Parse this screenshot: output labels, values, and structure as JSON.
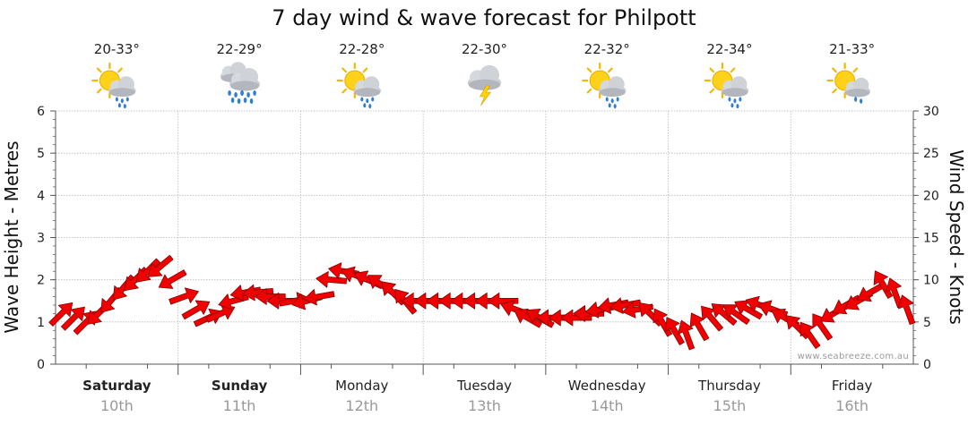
{
  "title": "7 day wind & wave forecast for Philpott",
  "watermark": "www.seabreeze.com.au",
  "colors": {
    "arrow_fill": "#f00000",
    "arrow_stroke": "#7a0000",
    "grid": "#b8b8b8",
    "axis": "#555555",
    "date_text": "#999999"
  },
  "days": [
    {
      "name": "Saturday",
      "date": "10th",
      "bold": true,
      "temp": "20-33°",
      "icon": "sun-cloud-rain-icon"
    },
    {
      "name": "Sunday",
      "date": "11th",
      "bold": true,
      "temp": "22-29°",
      "icon": "heavy-rain-cloud-icon"
    },
    {
      "name": "Monday",
      "date": "12th",
      "bold": false,
      "temp": "22-28°",
      "icon": "sun-cloud-rain-icon"
    },
    {
      "name": "Tuesday",
      "date": "13th",
      "bold": false,
      "temp": "22-30°",
      "icon": "thunderstorm-icon"
    },
    {
      "name": "Wednesday",
      "date": "14th",
      "bold": false,
      "temp": "22-32°",
      "icon": "sun-cloud-rain-icon"
    },
    {
      "name": "Thursday",
      "date": "15th",
      "bold": false,
      "temp": "22-34°",
      "icon": "sun-cloud-rain-icon"
    },
    {
      "name": "Friday",
      "date": "16th",
      "bold": false,
      "temp": "21-33°",
      "icon": "sun-cloud-shower-icon"
    }
  ],
  "chart_data": {
    "type": "line",
    "title": "7 day wind & wave forecast for Philpott",
    "ylabel_left": "Wave Height - Metres",
    "ylabel_right": "Wind Speed - Knots",
    "ylim_left": [
      0,
      6
    ],
    "ylim_right": [
      0,
      30
    ],
    "yticks_left": [
      "0",
      "1",
      "2",
      "3",
      "4",
      "5",
      "6"
    ],
    "yticks_right": [
      "0",
      "5",
      "10",
      "15",
      "20",
      "25",
      "30"
    ],
    "grid": true,
    "x_unit": "days from start of Saturday 10th",
    "series": [
      {
        "marker": "wind-direction-arrow",
        "axis": "right",
        "x": [
          0.05,
          0.15,
          0.25,
          0.35,
          0.45,
          0.55,
          0.65,
          0.75,
          0.85,
          0.95,
          1.05,
          1.15,
          1.25,
          1.35,
          1.45,
          1.55,
          1.65,
          1.75,
          1.85,
          1.95,
          2.05,
          2.15,
          2.25,
          2.35,
          2.45,
          2.55,
          2.65,
          2.75,
          2.85,
          2.95,
          3.05,
          3.15,
          3.25,
          3.35,
          3.45,
          3.55,
          3.65,
          3.75,
          3.85,
          3.95,
          4.05,
          4.15,
          4.25,
          4.35,
          4.45,
          4.55,
          4.65,
          4.75,
          4.85,
          4.95,
          5.05,
          5.15,
          5.25,
          5.35,
          5.45,
          5.55,
          5.65,
          5.75,
          5.85,
          5.95,
          6.05,
          6.15,
          6.25,
          6.35,
          6.45,
          6.55,
          6.65,
          6.75,
          6.85,
          6.95
        ],
        "values": [
          6,
          5.5,
          5,
          6,
          7.5,
          9,
          10,
          11,
          11.5,
          10,
          8,
          6.5,
          5.5,
          6,
          7.5,
          8.5,
          8.5,
          8,
          7.5,
          7.5,
          7.5,
          8,
          10,
          11,
          10.5,
          10,
          9.5,
          8.5,
          7.5,
          7.5,
          7.5,
          7.5,
          7.5,
          7.5,
          7.5,
          7.5,
          7.5,
          6.5,
          5.5,
          5.5,
          5.5,
          5.5,
          5.5,
          6,
          6.5,
          7,
          7,
          6.5,
          6,
          5,
          4,
          3.5,
          4.5,
          5.5,
          6,
          6,
          6.5,
          7,
          6.5,
          5.5,
          4.5,
          3.5,
          4.5,
          6,
          7,
          7.5,
          8.5,
          9.5,
          8.5,
          6.5
        ],
        "direction_deg": [
          225,
          225,
          225,
          45,
          40,
          40,
          45,
          45,
          50,
          60,
          250,
          240,
          245,
          245,
          75,
          80,
          85,
          90,
          90,
          260,
          75,
          80,
          95,
          100,
          110,
          115,
          125,
          135,
          140,
          90,
          90,
          90,
          90,
          90,
          90,
          90,
          90,
          110,
          120,
          120,
          90,
          90,
          90,
          90,
          80,
          80,
          80,
          80,
          135,
          150,
          150,
          160,
          150,
          140,
          130,
          125,
          120,
          110,
          110,
          120,
          135,
          145,
          145,
          60,
          60,
          60,
          60,
          150,
          160,
          160
        ]
      }
    ]
  }
}
